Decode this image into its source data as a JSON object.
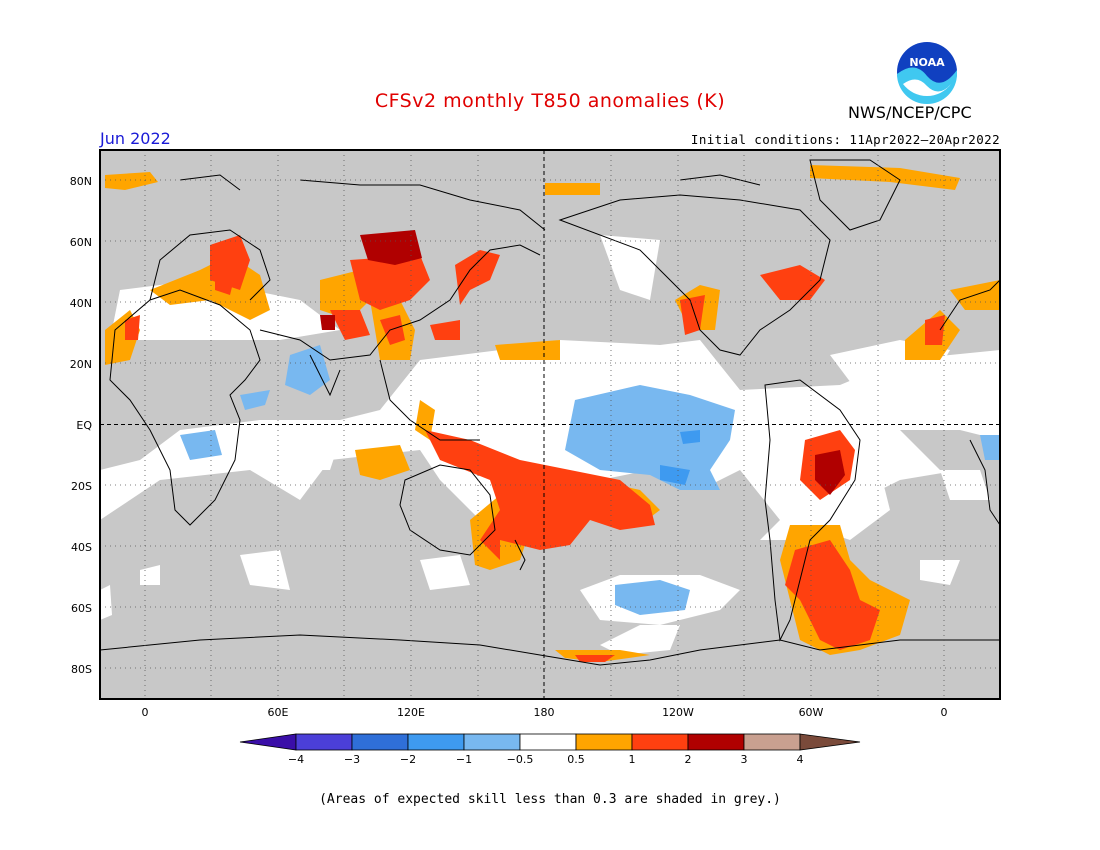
{
  "header": {
    "title": "CFSv2 monthly T850 anomalies (K)",
    "agency": "NWS/NCEP/CPC",
    "logo_text": "NOAA",
    "valid_month": "Jun 2022",
    "initial_conditions": "Initial conditions: 11Apr2022–20Apr2022"
  },
  "footer_note": "(Areas of expected skill less than 0.3 are shaded in grey.)",
  "axes": {
    "lat_labels": [
      "80N",
      "60N",
      "40N",
      "20N",
      "EQ",
      "20S",
      "40S",
      "60S",
      "80S"
    ],
    "lon_labels": [
      "0",
      "60E",
      "120E",
      "180",
      "120W",
      "60W",
      "0"
    ]
  },
  "colorbar": {
    "labels": [
      "−4",
      "−3",
      "−2",
      "−1",
      "−0.5",
      "0.5",
      "1",
      "2",
      "3",
      "4"
    ],
    "colors": [
      "#3a0ea8",
      "#4b3fd8",
      "#2f6fd8",
      "#3e9af0",
      "#78b8f0",
      "#ffffff",
      "#ffa500",
      "#ff4010",
      "#b00000",
      "#c9a090",
      "#7a4a3a"
    ]
  },
  "colors": {
    "skill_grey": "#c8c8c8",
    "title_red": "#e00000",
    "month_blue": "#1a1ad6"
  }
}
